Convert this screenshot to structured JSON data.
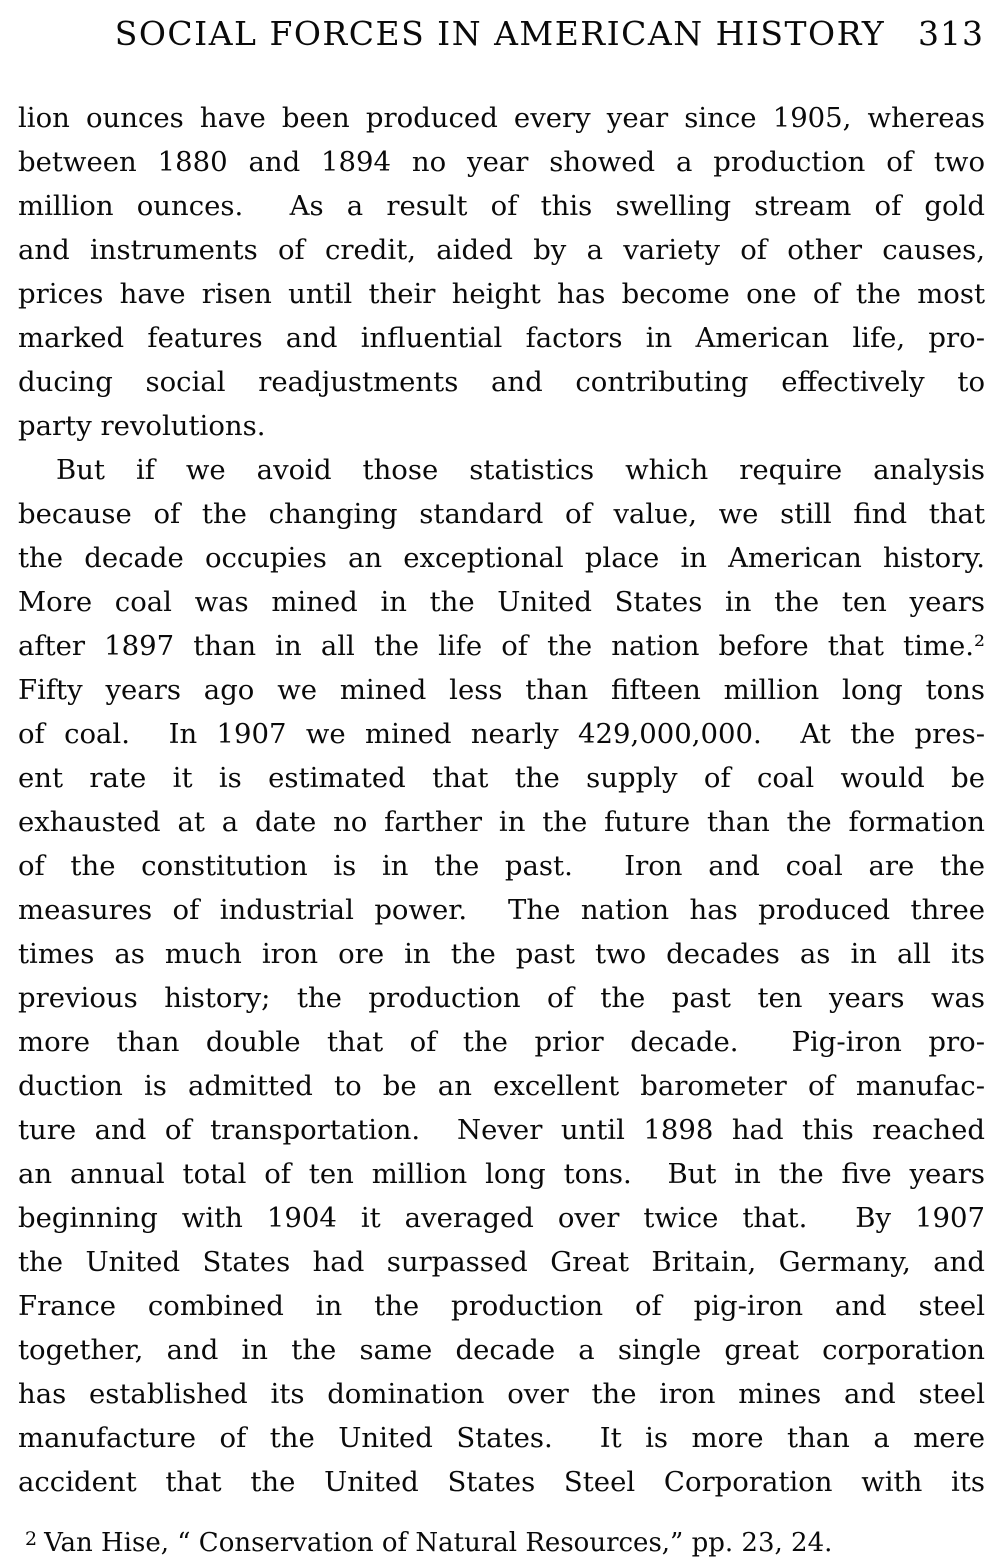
{
  "page": {
    "header": {
      "title": "SOCIAL FORCES IN AMERICAN HISTORY",
      "page_number": "313"
    },
    "paragraphs": [
      {
        "lines": [
          "lion ounces have been produced every year since 1905, whereas",
          "between 1880 and 1894 no year showed a production of two",
          "million ounces.  As a result of this swelling stream of gold",
          "and instruments of credit, aided by a variety of other causes,",
          "prices have risen until their height has become one of the most",
          "marked features and influential factors in American life, pro-",
          "ducing social readjustments and contributing effectively to",
          "party revolutions."
        ]
      },
      {
        "lines": [
          "But if we avoid those statistics which require analysis",
          "because of the changing standard of value, we still find that",
          "the decade occupies an exceptional place in American history.",
          "More coal was mined in the United States in the ten years",
          "after 1897 than in all the life of the nation before that time.²",
          "Fifty years ago we mined less than fifteen million long tons",
          "of coal.  In 1907 we mined nearly 429,000,000.  At the pres-",
          "ent rate it is estimated that the supply of coal would be",
          "exhausted at a date no farther in the future than the formation",
          "of the constitution is in the past.  Iron and coal are the",
          "measures of industrial power.  The nation has produced three",
          "times as much iron ore in the past two decades as in all its",
          "previous history; the production of the past ten years was",
          "more than double that of the prior decade.  Pig-iron pro-",
          "duction is admitted to be an excellent barometer of manufac-",
          "ture and of transportation.  Never until 1898 had this reached",
          "an annual total of ten million long tons.  But in the five years",
          "beginning with 1904 it averaged over twice that.  By 1907",
          "the United States had surpassed Great Britain, Germany, and",
          "France combined in the production of pig-iron and steel",
          "together, and in the same decade a single great corporation",
          "has established its domination over the iron mines and steel",
          "manufacture of the United States.  It is more than a mere",
          "accident that the United States Steel Corporation with its"
        ]
      }
    ],
    "footnote": {
      "marker": "2",
      "text": "Van Hise, “ Conservation of Natural Resources,” pp. 23, 24."
    }
  }
}
